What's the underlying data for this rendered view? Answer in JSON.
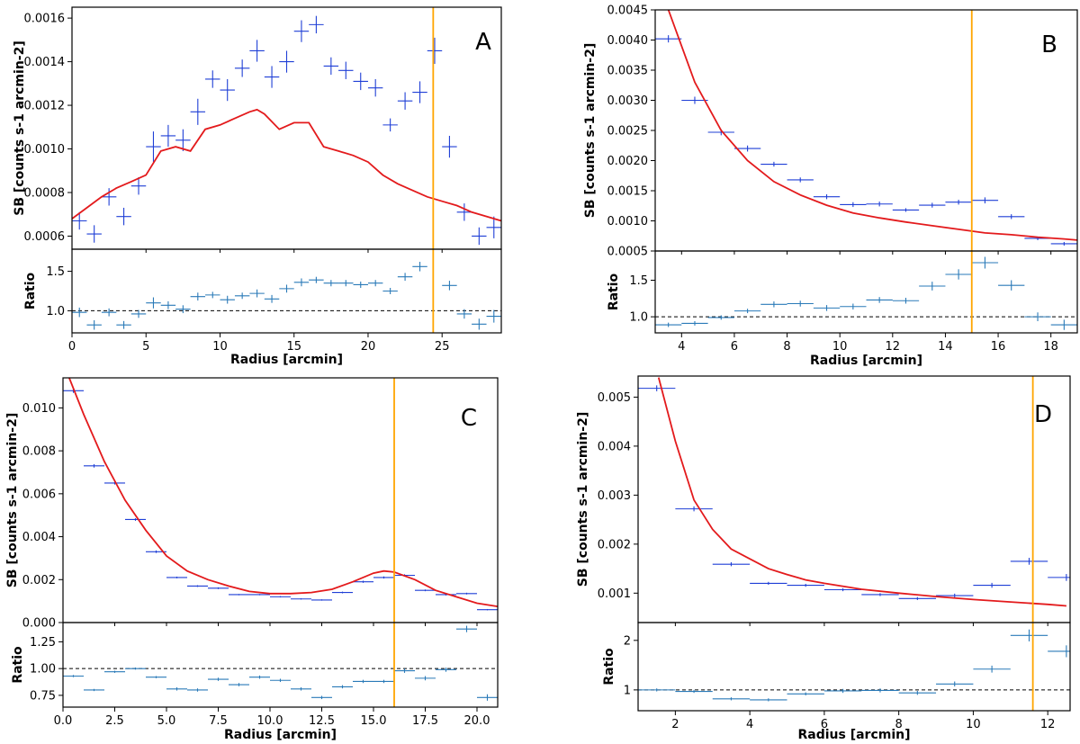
{
  "colors": {
    "data": "#1f3fd6",
    "ratio": "#2a7ab8",
    "model": "#e31a1c",
    "vline": "#ffa500",
    "ref": "#000000"
  },
  "chart_data": [
    {
      "type": "scatter",
      "panel_label": "A",
      "ylabel": "SB [counts s-1 arcmin-2]",
      "ratio_ylabel": "Ratio",
      "xlabel": "Radius [arcmin]",
      "xlim": [
        0,
        29
      ],
      "ylim": [
        0.00054,
        0.00165
      ],
      "ratio_ylim": [
        0.72,
        1.78
      ],
      "xticks": [
        0,
        5,
        10,
        15,
        20,
        25
      ],
      "xtick_labels": [
        "0",
        "5",
        "10",
        "15",
        "20",
        "25"
      ],
      "yticks": [
        0.0006,
        0.0008,
        0.001,
        0.0012,
        0.0014,
        0.0016
      ],
      "ytick_labels": [
        "0.0006",
        "0.0008",
        "0.0010",
        "0.0012",
        "0.0014",
        "0.0016"
      ],
      "ratio_yticks": [
        1.0,
        1.5
      ],
      "ratio_ytick_labels": [
        "1.0",
        "1.5"
      ],
      "vline_x": 24.4,
      "ratio_ref": 1.0,
      "data": {
        "x": [
          0.5,
          1.5,
          2.5,
          3.5,
          4.5,
          5.5,
          6.5,
          7.5,
          8.5,
          9.5,
          10.5,
          11.5,
          12.5,
          13.5,
          14.5,
          15.5,
          16.5,
          17.5,
          18.5,
          19.5,
          20.5,
          21.5,
          22.5,
          23.5,
          24.5,
          25.5,
          26.5,
          27.5,
          28.5
        ],
        "y": [
          0.00067,
          0.00061,
          0.00078,
          0.00069,
          0.00083,
          0.00101,
          0.00106,
          0.00104,
          0.00117,
          0.00132,
          0.00127,
          0.00137,
          0.00145,
          0.00133,
          0.0014,
          0.00154,
          0.00157,
          0.00138,
          0.00136,
          0.00131,
          0.00128,
          0.00111,
          0.00122,
          0.00126,
          0.00145,
          0.00101,
          0.00071,
          0.0006,
          0.00064
        ],
        "yerr": [
          4e-05,
          4e-05,
          4e-05,
          4e-05,
          4e-05,
          7e-05,
          5e-05,
          5e-05,
          6e-05,
          4e-05,
          5e-05,
          4e-05,
          5e-05,
          5e-05,
          5e-05,
          5e-05,
          4e-05,
          4e-05,
          4e-05,
          4e-05,
          4e-05,
          3e-05,
          4e-05,
          5e-05,
          6e-05,
          5e-05,
          4e-05,
          4e-05,
          5e-05
        ],
        "xerr": [
          0.5,
          0.5,
          0.5,
          0.5,
          0.5,
          0.5,
          0.5,
          0.5,
          0.5,
          0.5,
          0.5,
          0.5,
          0.5,
          0.5,
          0.5,
          0.5,
          0.5,
          0.5,
          0.5,
          0.5,
          0.5,
          0.5,
          0.5,
          0.5,
          0.5,
          0.5,
          0.5,
          0.5,
          0.5
        ]
      },
      "model": {
        "x": [
          0,
          1,
          2,
          3,
          4,
          5,
          6,
          7,
          8,
          9,
          10,
          11,
          12,
          12.5,
          13,
          14,
          15,
          16,
          17,
          18,
          19,
          20,
          21,
          22,
          23,
          24,
          25,
          26,
          27,
          28,
          29
        ],
        "y": [
          0.00068,
          0.00073,
          0.00078,
          0.00082,
          0.00085,
          0.00088,
          0.00099,
          0.00101,
          0.00099,
          0.00109,
          0.00111,
          0.00114,
          0.00117,
          0.00118,
          0.00116,
          0.00109,
          0.00112,
          0.00112,
          0.00101,
          0.00099,
          0.00097,
          0.00094,
          0.00088,
          0.00084,
          0.00081,
          0.00078,
          0.00076,
          0.00074,
          0.00071,
          0.00069,
          0.00067
        ]
      },
      "ratio": {
        "x": [
          0.5,
          1.5,
          2.5,
          3.5,
          4.5,
          5.5,
          6.5,
          7.5,
          8.5,
          9.5,
          10.5,
          11.5,
          12.5,
          13.5,
          14.5,
          15.5,
          16.5,
          17.5,
          18.5,
          19.5,
          20.5,
          21.5,
          22.5,
          23.5,
          25.5,
          26.5,
          27.5,
          28.5
        ],
        "y": [
          0.98,
          0.82,
          0.98,
          0.82,
          0.96,
          1.1,
          1.07,
          1.02,
          1.18,
          1.2,
          1.14,
          1.19,
          1.22,
          1.15,
          1.28,
          1.36,
          1.39,
          1.35,
          1.35,
          1.33,
          1.35,
          1.25,
          1.43,
          1.56,
          1.32,
          0.96,
          0.83,
          0.93
        ],
        "yerr": [
          0.06,
          0.06,
          0.05,
          0.05,
          0.05,
          0.07,
          0.05,
          0.05,
          0.05,
          0.04,
          0.05,
          0.04,
          0.05,
          0.05,
          0.05,
          0.05,
          0.04,
          0.04,
          0.04,
          0.04,
          0.04,
          0.04,
          0.05,
          0.06,
          0.06,
          0.06,
          0.07,
          0.08
        ]
      }
    },
    {
      "type": "scatter",
      "panel_label": "B",
      "ylabel": "SB [counts s-1 arcmin-2]",
      "ratio_ylabel": "Ratio",
      "xlabel": "Radius [arcmin]",
      "xlim": [
        3,
        19
      ],
      "ylim": [
        0.0005,
        0.0045
      ],
      "ratio_ylim": [
        0.78,
        1.9
      ],
      "xticks": [
        4,
        6,
        8,
        10,
        12,
        14,
        16,
        18
      ],
      "xtick_labels": [
        "4",
        "6",
        "8",
        "10",
        "12",
        "14",
        "16",
        "18"
      ],
      "yticks": [
        0.0005,
        0.001,
        0.0015,
        0.002,
        0.0025,
        0.003,
        0.0035,
        0.004,
        0.0045
      ],
      "ytick_labels": [
        "0.0005",
        "0.0010",
        "0.0015",
        "0.0020",
        "0.0025",
        "0.0030",
        "0.0035",
        "0.0040",
        "0.0045"
      ],
      "ratio_yticks": [
        1.0,
        1.5
      ],
      "ratio_ytick_labels": [
        "1.0",
        "1.5"
      ],
      "vline_x": 15.0,
      "ratio_ref": 1.0,
      "data": {
        "x": [
          3.5,
          4.5,
          5.5,
          6.5,
          7.5,
          8.5,
          9.5,
          10.5,
          11.5,
          12.5,
          13.5,
          14.5,
          15.5,
          16.5,
          17.5,
          18.5
        ],
        "y": [
          0.00402,
          0.003,
          0.00247,
          0.0022,
          0.00194,
          0.00168,
          0.0014,
          0.00127,
          0.00128,
          0.00118,
          0.00126,
          0.00131,
          0.00134,
          0.00107,
          0.00071,
          0.00062
        ],
        "yerr": [
          6e-05,
          6e-05,
          5e-05,
          5e-05,
          4e-05,
          4e-05,
          4e-05,
          4e-05,
          4e-05,
          3e-05,
          4e-05,
          4e-05,
          5e-05,
          4e-05,
          3e-05,
          3e-05
        ],
        "xerr": [
          0.5,
          0.5,
          0.5,
          0.5,
          0.5,
          0.5,
          0.5,
          0.5,
          0.5,
          0.5,
          0.5,
          0.5,
          0.5,
          0.5,
          0.5,
          0.5
        ]
      },
      "model": {
        "x": [
          3.5,
          4.5,
          5.5,
          6.5,
          7.5,
          8.5,
          9.5,
          10.5,
          11.5,
          12.5,
          13.5,
          14.5,
          15.5,
          16.5,
          17.5,
          18.5,
          19
        ],
        "y": [
          0.0045,
          0.0033,
          0.0025,
          0.002,
          0.00165,
          0.00143,
          0.00126,
          0.00113,
          0.00105,
          0.00098,
          0.00092,
          0.00086,
          0.0008,
          0.00077,
          0.00073,
          0.0007,
          0.00068
        ]
      },
      "ratio": {
        "x": [
          3.5,
          4.5,
          5.5,
          6.5,
          7.5,
          8.5,
          9.5,
          10.5,
          11.5,
          12.5,
          13.5,
          14.5,
          15.5,
          16.5,
          17.5,
          18.5
        ],
        "y": [
          0.89,
          0.91,
          0.99,
          1.08,
          1.17,
          1.18,
          1.12,
          1.14,
          1.23,
          1.22,
          1.42,
          1.58,
          1.74,
          1.43,
          1.0,
          0.89
        ],
        "yerr": [
          0.03,
          0.03,
          0.03,
          0.03,
          0.04,
          0.04,
          0.04,
          0.04,
          0.04,
          0.04,
          0.06,
          0.07,
          0.08,
          0.07,
          0.06,
          0.07
        ]
      }
    },
    {
      "type": "scatter",
      "panel_label": "C",
      "ylabel": "SB [counts s-1 arcmin-2]",
      "ratio_ylabel": "Ratio",
      "xlabel": "Radius [arcmin]",
      "xlim": [
        0,
        21
      ],
      "ylim": [
        0,
        0.0114
      ],
      "ratio_ylim": [
        0.64,
        1.43
      ],
      "xticks": [
        0,
        2.5,
        5,
        7.5,
        10,
        12.5,
        15,
        17.5,
        20
      ],
      "xtick_labels": [
        "0.0",
        "2.5",
        "5.0",
        "7.5",
        "10.0",
        "12.5",
        "15.0",
        "17.5",
        "20.0"
      ],
      "yticks": [
        0,
        0.002,
        0.004,
        0.006,
        0.008,
        0.01
      ],
      "ytick_labels": [
        "0.000",
        "0.002",
        "0.004",
        "0.006",
        "0.008",
        "0.010"
      ],
      "ratio_yticks": [
        0.75,
        1.0,
        1.25
      ],
      "ratio_ytick_labels": [
        "0.75",
        "1.00",
        "1.25"
      ],
      "vline_x": 16.0,
      "ratio_ref": 1.0,
      "data": {
        "x": [
          0.5,
          1.5,
          2.5,
          3.5,
          4.5,
          5.5,
          6.5,
          7.5,
          8.5,
          9.5,
          10.5,
          11.5,
          12.5,
          13.5,
          14.5,
          15.5,
          16.5,
          17.5,
          18.5,
          19.5,
          20.5
        ],
        "y": [
          0.0108,
          0.0073,
          0.0065,
          0.0048,
          0.0033,
          0.0021,
          0.0017,
          0.0016,
          0.0013,
          0.0013,
          0.0012,
          0.0011,
          0.00105,
          0.0014,
          0.0019,
          0.0021,
          0.0022,
          0.0015,
          0.0013,
          0.00135,
          0.0006
        ],
        "yerr": [
          0.0001,
          8e-05,
          7e-05,
          6e-05,
          6e-05,
          4e-05,
          4e-05,
          4e-05,
          3e-05,
          3e-05,
          3e-05,
          3e-05,
          3e-05,
          4e-05,
          5e-05,
          5e-05,
          5e-05,
          4e-05,
          4e-05,
          4e-05,
          3e-05
        ],
        "xerr": [
          0.5,
          0.5,
          0.5,
          0.5,
          0.5,
          0.5,
          0.5,
          0.5,
          0.5,
          0.5,
          0.5,
          0.5,
          0.5,
          0.5,
          0.5,
          0.5,
          0.5,
          0.5,
          0.5,
          0.5,
          0.5
        ]
      },
      "model": {
        "x": [
          0.3,
          1,
          2,
          3,
          4,
          5,
          6,
          7,
          8,
          9,
          10,
          11,
          12,
          13,
          14,
          15,
          15.5,
          16,
          17,
          18,
          19,
          20,
          21
        ],
        "y": [
          0.0114,
          0.0097,
          0.0075,
          0.0057,
          0.0043,
          0.0031,
          0.0024,
          0.002,
          0.0017,
          0.00145,
          0.00135,
          0.00135,
          0.0014,
          0.00155,
          0.0019,
          0.0023,
          0.0024,
          0.00235,
          0.002,
          0.0015,
          0.0012,
          0.0009,
          0.00075
        ]
      },
      "ratio": {
        "x": [
          0.5,
          1.5,
          2.5,
          3.5,
          4.5,
          5.5,
          6.5,
          7.5,
          8.5,
          9.5,
          10.5,
          11.5,
          12.5,
          13.5,
          14.5,
          15.5,
          16.5,
          17.5,
          18.5,
          19.5,
          20.5
        ],
        "y": [
          0.93,
          0.8,
          0.97,
          1.0,
          0.92,
          0.81,
          0.8,
          0.9,
          0.85,
          0.92,
          0.89,
          0.81,
          0.73,
          0.83,
          0.88,
          0.88,
          0.98,
          0.91,
          0.99,
          1.37,
          0.73
        ],
        "yerr": [
          0.01,
          0.01,
          0.01,
          0.01,
          0.01,
          0.015,
          0.015,
          0.015,
          0.015,
          0.015,
          0.015,
          0.015,
          0.015,
          0.015,
          0.015,
          0.015,
          0.02,
          0.02,
          0.02,
          0.03,
          0.03
        ]
      }
    },
    {
      "type": "scatter",
      "panel_label": "D",
      "ylabel": "SB [counts s-1 arcmin-2]",
      "ratio_ylabel": "Ratio",
      "xlabel": "Radius [arcmin]",
      "xlim": [
        1,
        12.6
      ],
      "ylim": [
        0.0004,
        0.00543
      ],
      "ratio_ylim": [
        0.58,
        2.36
      ],
      "xticks": [
        2,
        4,
        6,
        8,
        10,
        12
      ],
      "xtick_labels": [
        "2",
        "4",
        "6",
        "8",
        "10",
        "12"
      ],
      "yticks": [
        0.001,
        0.002,
        0.003,
        0.004,
        0.005
      ],
      "ytick_labels": [
        "0.001",
        "0.002",
        "0.003",
        "0.004",
        "0.005"
      ],
      "ratio_yticks": [
        1,
        2
      ],
      "ratio_ytick_labels": [
        "1",
        "2"
      ],
      "vline_x": 11.6,
      "ratio_ref": 1.0,
      "data": {
        "x": [
          1.5,
          2.5,
          3.5,
          4.5,
          5.5,
          6.5,
          7.5,
          8.5,
          9.5,
          10.5,
          11.5,
          12.5
        ],
        "y": [
          0.00518,
          0.00272,
          0.00159,
          0.0012,
          0.00116,
          0.00107,
          0.00097,
          0.00089,
          0.00095,
          0.00116,
          0.00165,
          0.00132
        ],
        "yerr": [
          6e-05,
          5e-05,
          4e-05,
          3e-05,
          3e-05,
          3e-05,
          3e-05,
          3e-05,
          4e-05,
          5e-05,
          7e-05,
          7e-05
        ],
        "xerr": [
          0.5,
          0.5,
          0.5,
          0.5,
          0.5,
          0.5,
          0.5,
          0.5,
          0.5,
          0.5,
          0.5,
          0.5
        ]
      },
      "model": {
        "x": [
          1.55,
          2,
          2.5,
          3,
          3.5,
          4,
          4.5,
          5,
          5.5,
          6,
          7,
          8,
          9,
          10,
          11,
          12,
          12.5
        ],
        "y": [
          0.0054,
          0.0041,
          0.0029,
          0.0023,
          0.0019,
          0.0017,
          0.0015,
          0.00138,
          0.00127,
          0.0012,
          0.00108,
          0.001,
          0.00093,
          0.00087,
          0.00082,
          0.00077,
          0.00074
        ]
      },
      "ratio": {
        "x": [
          1.5,
          2.5,
          3.5,
          4.5,
          5.5,
          6.5,
          7.5,
          8.5,
          9.5,
          10.5,
          11.5,
          12.5
        ],
        "y": [
          1.0,
          0.97,
          0.82,
          0.8,
          0.92,
          0.98,
          0.99,
          0.94,
          1.12,
          1.42,
          2.1,
          1.78
        ],
        "yerr": [
          0.03,
          0.03,
          0.03,
          0.03,
          0.03,
          0.04,
          0.04,
          0.04,
          0.05,
          0.07,
          0.12,
          0.12
        ]
      }
    }
  ]
}
